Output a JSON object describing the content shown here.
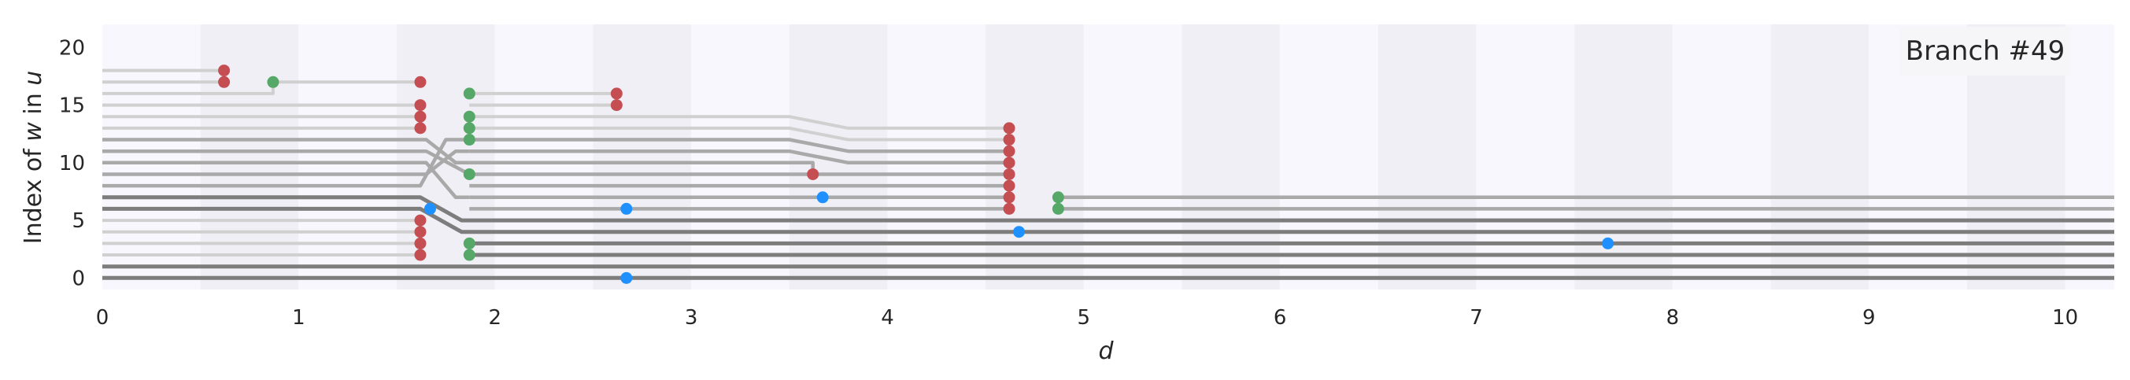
{
  "chart_data": {
    "type": "line",
    "legend_label": "Branch #49",
    "legend_position": "upper-right",
    "xlabel_var": "d",
    "ylabel_parts": [
      "Index of ",
      "w",
      " in ",
      "u"
    ],
    "xlim": [
      0,
      10.25
    ],
    "ylim": [
      -1,
      22
    ],
    "xticks": [
      0,
      1,
      2,
      3,
      4,
      5,
      6,
      7,
      8,
      9,
      10
    ],
    "yticks": [
      0,
      5,
      10,
      15,
      20
    ],
    "xtick_labels": [
      "0",
      "1",
      "2",
      "3",
      "4",
      "5",
      "6",
      "7",
      "8",
      "9",
      "10"
    ],
    "ytick_labels": [
      "0",
      "5",
      "10",
      "15",
      "20"
    ],
    "background_bands": {
      "width": 0.5,
      "colors": [
        "#f7f7fd",
        "#efeff5"
      ]
    },
    "grid": false,
    "colors": {
      "start": "#c44e52",
      "end": "#55a868",
      "event": "#1e90ff"
    },
    "series": [
      {
        "style": "light",
        "points": [
          [
            0,
            18
          ],
          [
            0.62,
            18
          ]
        ]
      },
      {
        "style": "light",
        "points": [
          [
            0,
            17
          ],
          [
            0.62,
            17
          ]
        ]
      },
      {
        "style": "light",
        "points": [
          [
            0,
            16
          ],
          [
            0.87,
            16
          ],
          [
            0.87,
            17
          ],
          [
            1.62,
            17
          ]
        ]
      },
      {
        "style": "light",
        "points": [
          [
            0,
            15
          ],
          [
            1.62,
            15
          ]
        ]
      },
      {
        "style": "light",
        "points": [
          [
            0,
            14
          ],
          [
            1.62,
            14
          ]
        ]
      },
      {
        "style": "light",
        "points": [
          [
            0,
            13
          ],
          [
            1.62,
            13
          ]
        ]
      },
      {
        "style": "mid",
        "points": [
          [
            0,
            12
          ],
          [
            1.65,
            12
          ],
          [
            1.8,
            10
          ],
          [
            1.87,
            10
          ]
        ]
      },
      {
        "style": "mid",
        "points": [
          [
            0,
            11
          ],
          [
            1.65,
            11
          ],
          [
            1.87,
            9
          ]
        ]
      },
      {
        "style": "mid",
        "points": [
          [
            0,
            10
          ],
          [
            1.65,
            10
          ],
          [
            1.8,
            7
          ],
          [
            1.87,
            7
          ]
        ]
      },
      {
        "style": "mid",
        "points": [
          [
            0,
            9
          ],
          [
            1.65,
            9
          ],
          [
            1.8,
            11
          ],
          [
            1.87,
            11
          ]
        ]
      },
      {
        "style": "mid",
        "points": [
          [
            0,
            8
          ],
          [
            1.62,
            8
          ],
          [
            1.75,
            12
          ],
          [
            1.87,
            12
          ]
        ]
      },
      {
        "style": "dark",
        "points": [
          [
            0,
            7
          ],
          [
            1.62,
            7
          ],
          [
            1.83,
            5
          ],
          [
            10.25,
            5
          ]
        ]
      },
      {
        "style": "dark",
        "points": [
          [
            0,
            6
          ],
          [
            1.62,
            6
          ],
          [
            1.83,
            4
          ],
          [
            10.25,
            4
          ]
        ]
      },
      {
        "style": "light",
        "points": [
          [
            0,
            5
          ],
          [
            1.62,
            5
          ]
        ]
      },
      {
        "style": "light",
        "points": [
          [
            0,
            4
          ],
          [
            1.62,
            4
          ]
        ]
      },
      {
        "style": "light",
        "points": [
          [
            0,
            3
          ],
          [
            1.62,
            3
          ]
        ]
      },
      {
        "style": "light",
        "points": [
          [
            0,
            2
          ],
          [
            1.62,
            2
          ]
        ]
      },
      {
        "style": "dark",
        "points": [
          [
            0,
            1
          ],
          [
            10.25,
            1
          ]
        ]
      },
      {
        "style": "dark",
        "points": [
          [
            0,
            0
          ],
          [
            10.25,
            0
          ]
        ]
      },
      {
        "style": "light",
        "points": [
          [
            1.87,
            16
          ],
          [
            2.62,
            16
          ]
        ]
      },
      {
        "style": "light",
        "points": [
          [
            1.87,
            15
          ],
          [
            2.62,
            15
          ]
        ]
      },
      {
        "style": "light",
        "points": [
          [
            1.87,
            14
          ],
          [
            3.5,
            14
          ],
          [
            3.8,
            13
          ],
          [
            4.62,
            13
          ]
        ]
      },
      {
        "style": "light",
        "points": [
          [
            1.87,
            13
          ],
          [
            3.5,
            13
          ],
          [
            3.8,
            12
          ],
          [
            4.62,
            12
          ]
        ]
      },
      {
        "style": "mid",
        "points": [
          [
            1.87,
            12
          ],
          [
            3.5,
            12
          ],
          [
            3.8,
            11
          ],
          [
            4.62,
            11
          ]
        ]
      },
      {
        "style": "mid",
        "points": [
          [
            1.87,
            11
          ],
          [
            3.5,
            11
          ],
          [
            3.8,
            10
          ],
          [
            4.62,
            10
          ]
        ]
      },
      {
        "style": "mid",
        "points": [
          [
            1.87,
            10
          ],
          [
            3.62,
            10
          ],
          [
            3.62,
            9
          ]
        ]
      },
      {
        "style": "mid",
        "points": [
          [
            1.87,
            9
          ],
          [
            3.62,
            9
          ],
          [
            3.8,
            9
          ],
          [
            4.62,
            9
          ]
        ]
      },
      {
        "style": "mid",
        "points": [
          [
            1.87,
            8
          ],
          [
            4.62,
            8
          ]
        ]
      },
      {
        "style": "mid",
        "points": [
          [
            1.87,
            7
          ],
          [
            4.62,
            7
          ]
        ]
      },
      {
        "style": "mid",
        "points": [
          [
            1.87,
            6
          ],
          [
            4.62,
            6
          ]
        ]
      },
      {
        "style": "dark",
        "points": [
          [
            1.87,
            3
          ],
          [
            10.25,
            3
          ]
        ]
      },
      {
        "style": "dark",
        "points": [
          [
            1.87,
            2
          ],
          [
            10.25,
            2
          ]
        ]
      },
      {
        "style": "mid",
        "points": [
          [
            4.87,
            7
          ],
          [
            10.25,
            7
          ]
        ]
      },
      {
        "style": "mid",
        "points": [
          [
            4.87,
            6
          ],
          [
            10.25,
            6
          ]
        ]
      }
    ],
    "markers": [
      {
        "type": "start",
        "x": 0.62,
        "y": 18
      },
      {
        "type": "start",
        "x": 0.62,
        "y": 17
      },
      {
        "type": "end",
        "x": 0.87,
        "y": 17
      },
      {
        "type": "start",
        "x": 1.62,
        "y": 17
      },
      {
        "type": "start",
        "x": 1.62,
        "y": 15
      },
      {
        "type": "start",
        "x": 1.62,
        "y": 14
      },
      {
        "type": "start",
        "x": 1.62,
        "y": 13
      },
      {
        "type": "start",
        "x": 1.62,
        "y": 5
      },
      {
        "type": "start",
        "x": 1.62,
        "y": 4
      },
      {
        "type": "start",
        "x": 1.62,
        "y": 3
      },
      {
        "type": "start",
        "x": 1.62,
        "y": 2
      },
      {
        "type": "event",
        "x": 1.67,
        "y": 6
      },
      {
        "type": "end",
        "x": 1.87,
        "y": 16
      },
      {
        "type": "end",
        "x": 1.87,
        "y": 14
      },
      {
        "type": "end",
        "x": 1.87,
        "y": 13
      },
      {
        "type": "end",
        "x": 1.87,
        "y": 12
      },
      {
        "type": "end",
        "x": 1.87,
        "y": 9
      },
      {
        "type": "end",
        "x": 1.87,
        "y": 3
      },
      {
        "type": "end",
        "x": 1.87,
        "y": 2
      },
      {
        "type": "start",
        "x": 2.62,
        "y": 16
      },
      {
        "type": "start",
        "x": 2.62,
        "y": 15
      },
      {
        "type": "event",
        "x": 2.67,
        "y": 6
      },
      {
        "type": "event",
        "x": 2.67,
        "y": 0
      },
      {
        "type": "start",
        "x": 3.62,
        "y": 9
      },
      {
        "type": "event",
        "x": 3.67,
        "y": 7
      },
      {
        "type": "start",
        "x": 4.62,
        "y": 13
      },
      {
        "type": "start",
        "x": 4.62,
        "y": 12
      },
      {
        "type": "start",
        "x": 4.62,
        "y": 11
      },
      {
        "type": "start",
        "x": 4.62,
        "y": 10
      },
      {
        "type": "start",
        "x": 4.62,
        "y": 9
      },
      {
        "type": "start",
        "x": 4.62,
        "y": 8
      },
      {
        "type": "start",
        "x": 4.62,
        "y": 7
      },
      {
        "type": "start",
        "x": 4.62,
        "y": 6
      },
      {
        "type": "event",
        "x": 4.67,
        "y": 4
      },
      {
        "type": "end",
        "x": 4.87,
        "y": 7
      },
      {
        "type": "end",
        "x": 4.87,
        "y": 6
      },
      {
        "type": "event",
        "x": 7.67,
        "y": 3
      }
    ]
  }
}
